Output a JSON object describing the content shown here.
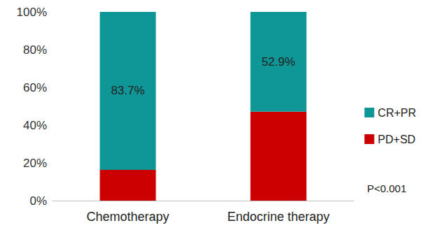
{
  "chart_data": {
    "type": "bar",
    "stacked": true,
    "grid": false,
    "legend": "right",
    "categories": [
      "Chemotherapy",
      "Endocrine therapy"
    ],
    "series": [
      {
        "name": "CR+PR",
        "color": "#0f9797",
        "values": [
          83.7,
          52.9
        ],
        "data_labels": true,
        "value_labels": [
          "83.7%",
          "52.9%"
        ]
      },
      {
        "name": "PD+SD",
        "color": "#cc0000",
        "values": [
          16.3,
          47.1
        ]
      }
    ],
    "ylim": [
      0,
      100
    ],
    "yticks": [
      {
        "value": 0,
        "label": "0%"
      },
      {
        "value": 20,
        "label": "20%"
      },
      {
        "value": 40,
        "label": "40%"
      },
      {
        "value": 60,
        "label": "60%"
      },
      {
        "value": 80,
        "label": "80%"
      },
      {
        "value": 100,
        "label": "100%"
      }
    ],
    "annotation": "P<0.001"
  }
}
